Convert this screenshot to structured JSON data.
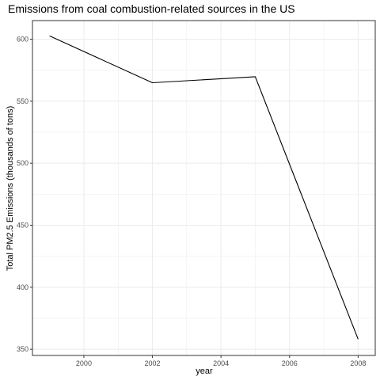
{
  "chart_data": {
    "type": "line",
    "title": "Emissions from coal combustion-related sources in the US",
    "xlabel": "year",
    "ylabel": "Total PM2.5 Emissions (thousands of tons)",
    "x": [
      1999,
      2002,
      2005,
      2008
    ],
    "series": [
      {
        "values": [
          602.6,
          564.9,
          569.7,
          358.1
        ]
      }
    ],
    "xlim": [
      1998.5,
      2008.5
    ],
    "ylim": [
      345,
      615
    ],
    "xticks": [
      2000,
      2002,
      2004,
      2006,
      2008
    ],
    "yticks": [
      350,
      400,
      450,
      500,
      550,
      600
    ],
    "grid": true,
    "line_color": "#000000",
    "grid_color": "#ebebeb",
    "panel_border_color": "#333333"
  }
}
